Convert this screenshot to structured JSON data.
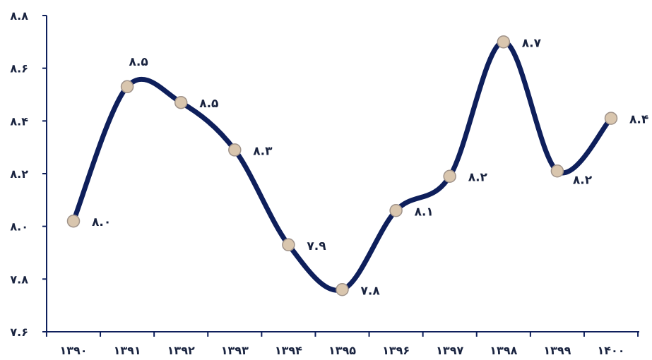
{
  "chart_data": {
    "type": "line",
    "x": [
      "۱۳۹۰",
      "۱۳۹۱",
      "۱۳۹۲",
      "۱۳۹۳",
      "۱۳۹۴",
      "۱۳۹۵",
      "۱۳۹۶",
      "۱۳۹۷",
      "۱۳۹۸",
      "۱۳۹۹",
      "۱۴۰۰"
    ],
    "y": [
      8.02,
      8.53,
      8.47,
      8.29,
      7.93,
      7.76,
      8.06,
      8.19,
      8.7,
      8.21,
      8.41
    ],
    "data_labels": [
      "۸.۰",
      "۸.۵",
      "۸.۵",
      "۸.۳",
      "۷.۹",
      "۷.۸",
      "۸.۱",
      "۸.۲",
      "۸.۷",
      "۸.۲",
      "۸.۴"
    ],
    "yticks": [
      7.6,
      7.8,
      8.0,
      8.2,
      8.4,
      8.6,
      8.8
    ],
    "ytick_labels": [
      "۷.۶",
      "۷.۸",
      "۸.۰",
      "۸.۲",
      "۸.۴",
      "۸.۶",
      "۸.۸"
    ],
    "ylim": [
      7.6,
      8.8
    ],
    "title": "",
    "xlabel": "",
    "ylabel": "",
    "grid": false,
    "smooth": true,
    "colors": {
      "line": "#0e1f5b",
      "marker_fill": "#d9c6ae",
      "marker_stroke": "#a0938a",
      "axis": "#0e1f5b",
      "text": "#1a2440"
    }
  }
}
